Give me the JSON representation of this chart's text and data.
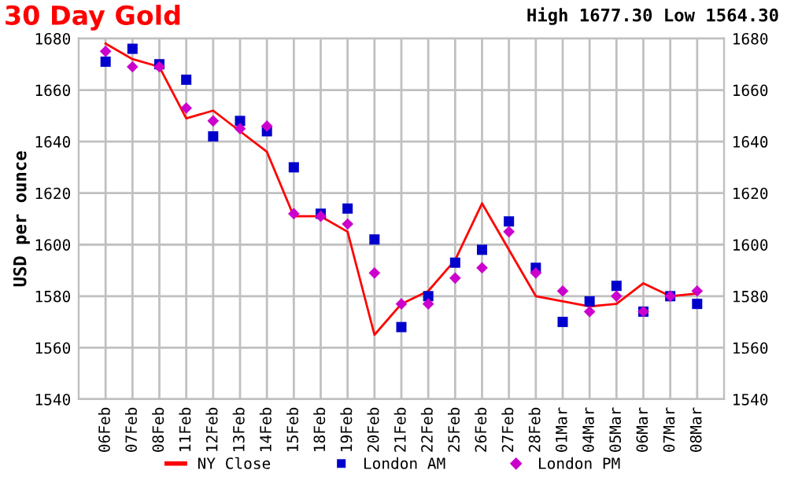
{
  "chart_data": {
    "type": "line",
    "title": "30 Day Gold",
    "subtitle": "High 1677.30 Low 1564.30",
    "ylabel": "USD per ounce",
    "categories": [
      "06Feb",
      "07Feb",
      "08Feb",
      "11Feb",
      "12Feb",
      "13Feb",
      "14Feb",
      "15Feb",
      "18Feb",
      "19Feb",
      "20Feb",
      "21Feb",
      "22Feb",
      "25Feb",
      "26Feb",
      "27Feb",
      "28Feb",
      "01Mar",
      "04Mar",
      "05Mar",
      "06Mar",
      "07Mar",
      "08Mar"
    ],
    "series": [
      {
        "name": "NY Close",
        "color": "#ff0000",
        "marker": "none",
        "values": [
          1678,
          1672,
          1669,
          1649,
          1652,
          1644,
          1636,
          1611,
          1611,
          1605,
          1565,
          1577,
          1582,
          1594,
          1616,
          1598,
          1580,
          1578,
          1576,
          1577,
          1585,
          1580,
          1581
        ]
      },
      {
        "name": "London AM",
        "type": "scatter",
        "color": "#0000cc",
        "marker": "square",
        "values": [
          1671,
          1676,
          1670,
          1664,
          1642,
          1648,
          1644,
          1630,
          1612,
          1614,
          1602,
          1568,
          1580,
          1593,
          1598,
          1609,
          1591,
          1570,
          1578,
          1584,
          1574,
          1580,
          1577
        ]
      },
      {
        "name": "London PM",
        "type": "scatter",
        "color": "#cc00cc",
        "marker": "diamond",
        "values": [
          1675,
          1669,
          1669,
          1653,
          1648,
          1645,
          1646,
          1612,
          1611,
          1608,
          1589,
          1577,
          1577,
          1587,
          1591,
          1605,
          1589,
          1582,
          1574,
          1580,
          1574,
          1580,
          1582
        ]
      }
    ],
    "ylim": [
      1540,
      1680
    ],
    "yticks": [
      1540,
      1560,
      1580,
      1600,
      1620,
      1640,
      1660,
      1680
    ],
    "y2lim": [
      1540,
      1680
    ],
    "y2ticks": [
      1540,
      1560,
      1580,
      1600,
      1620,
      1640,
      1660,
      1680
    ],
    "grid": true,
    "legend": "bottom"
  }
}
